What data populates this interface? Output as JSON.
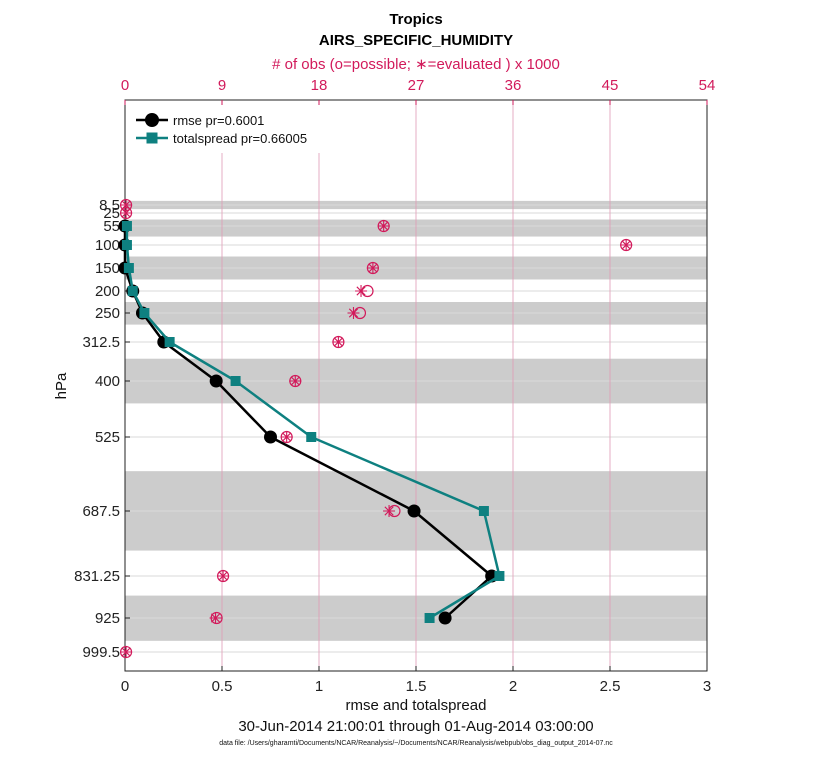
{
  "chart_data": {
    "type": "line",
    "title": "Tropics",
    "subtitle": "AIRS_SPECIFIC_HUMIDITY",
    "top_axis_label": "# of obs (o=possible; ∗=evaluated ) x 1000",
    "xlabel": "rmse and totalspread",
    "ylabel": "hPa",
    "date_range": "30-Jun-2014 21:00:01 through 01-Aug-2014 03:00:00",
    "data_file": "data file: /Users/gharamti/Documents/NCAR/Reanalysis/~/Documents/NCAR/Reanalysis/webpub/obs_diag_output_2014-07.nc",
    "xlim": [
      0,
      3
    ],
    "x_ticks": [
      "0",
      "0.5",
      "1",
      "1.5",
      "2",
      "2.5",
      "3"
    ],
    "top_xlim": [
      0,
      54
    ],
    "top_ticks": [
      "0",
      "9",
      "18",
      "27",
      "36",
      "45",
      "54"
    ],
    "levels": [
      "8.5",
      "25",
      "55",
      "100",
      "150",
      "200",
      "250",
      "312.5",
      "400",
      "525",
      "687.5",
      "831.25",
      "925",
      "999.5"
    ],
    "level_values": [
      8.5,
      25,
      55,
      100,
      150,
      200,
      250,
      312.5,
      400,
      525,
      687.5,
      831.25,
      925,
      999.5
    ],
    "shaded_bands_hPa": [
      [
        0,
        17
      ],
      [
        40,
        80
      ],
      [
        125,
        175
      ],
      [
        225,
        275
      ],
      [
        350,
        450
      ],
      [
        600,
        775
      ],
      [
        875,
        975
      ]
    ],
    "series": [
      {
        "name": "rmse",
        "legend": "rmse pr=0.6001",
        "color": "#000000",
        "levels": [
          55,
          100,
          150,
          200,
          250,
          312.5,
          400,
          525,
          687.5,
          831.25,
          925
        ],
        "values": [
          0.0,
          0.0,
          0.0,
          0.04,
          0.09,
          0.2,
          0.47,
          0.75,
          1.49,
          1.89,
          1.65
        ]
      },
      {
        "name": "totalspread",
        "legend": "totalspread pr=0.66005",
        "color": "#0e8080",
        "levels": [
          55,
          100,
          150,
          200,
          250,
          312.5,
          400,
          525,
          687.5,
          831.25,
          925
        ],
        "values": [
          0.01,
          0.01,
          0.02,
          0.04,
          0.1,
          0.23,
          0.57,
          0.96,
          1.85,
          1.93,
          1.57
        ]
      }
    ],
    "obs_counts_thousands": {
      "levels": [
        8.5,
        25,
        55,
        100,
        150,
        200,
        250,
        312.5,
        400,
        525,
        687.5,
        831.25,
        925,
        999.5
      ],
      "possible": [
        0.1,
        0.1,
        24.0,
        46.5,
        23.0,
        22.5,
        21.8,
        19.8,
        15.8,
        15.0,
        25.0,
        9.1,
        8.5,
        0.1
      ],
      "evaluated": [
        0.1,
        0.1,
        24.0,
        46.5,
        23.0,
        21.9,
        21.2,
        19.8,
        15.8,
        15.0,
        24.5,
        9.1,
        8.4,
        0.1
      ]
    }
  }
}
